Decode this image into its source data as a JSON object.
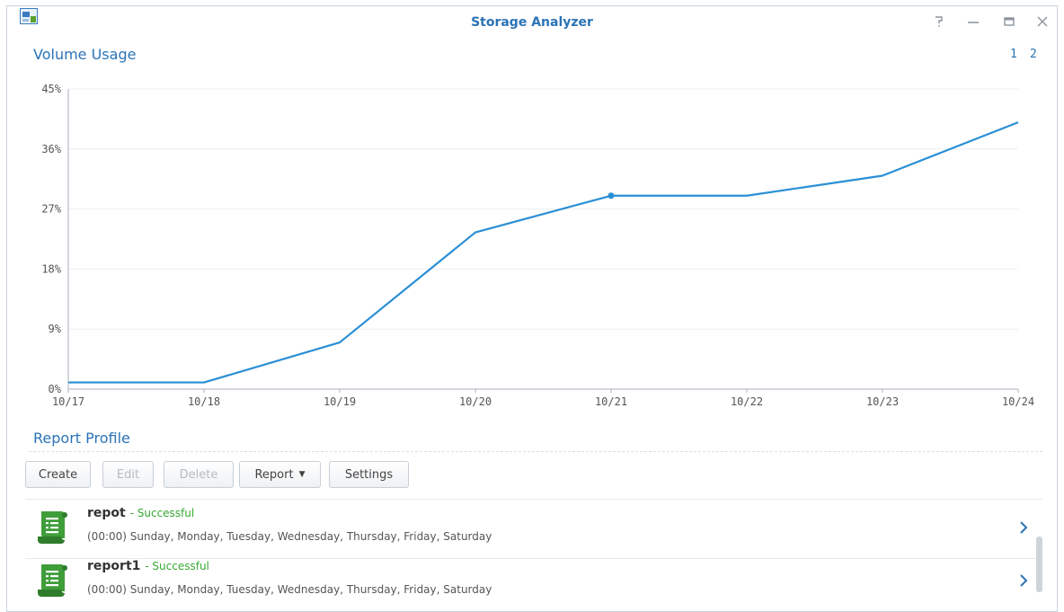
{
  "window": {
    "title": "Storage Analyzer",
    "icons": [
      "app-icon",
      "help-icon",
      "minimize-icon",
      "maximize-icon",
      "close-icon"
    ]
  },
  "volume_usage": {
    "title": "Volume Usage",
    "pages": [
      "1",
      "2"
    ]
  },
  "chart_data": {
    "type": "line",
    "title": "",
    "xlabel": "",
    "ylabel": "",
    "x": [
      "10/17",
      "10/18",
      "10/19",
      "10/20",
      "10/21",
      "10/22",
      "10/23",
      "10/24"
    ],
    "y_ticks": [
      "0%",
      "9%",
      "18%",
      "27%",
      "36%",
      "45%"
    ],
    "ylim": [
      0,
      45
    ],
    "grid": true,
    "color": "#2a8fd6",
    "series": [
      {
        "values": [
          1,
          1,
          7,
          23.5,
          29,
          29,
          32,
          40
        ]
      }
    ],
    "highlighted_point": "10/21"
  },
  "report_profile": {
    "title": "Report Profile",
    "toolbar": {
      "create": "Create",
      "edit": "Edit",
      "delete": "Delete",
      "report": "Report",
      "settings": "Settings"
    },
    "items": [
      {
        "name": "repot",
        "status": "- Successful",
        "schedule": "(00:00) Sunday, Monday, Tuesday, Wednesday, Thursday, Friday, Saturday"
      },
      {
        "name": "report1",
        "status": "- Successful",
        "schedule": "(00:00) Sunday, Monday, Tuesday, Wednesday, Thursday, Friday, Saturday"
      }
    ]
  }
}
